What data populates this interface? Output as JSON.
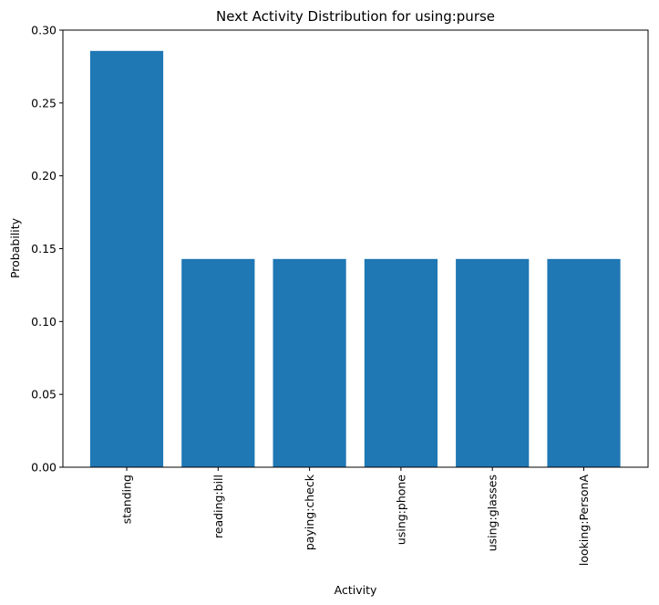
{
  "chart_data": {
    "type": "bar",
    "title": "Next Activity Distribution for using:purse",
    "xlabel": "Activity",
    "ylabel": "Probability",
    "categories": [
      "standing",
      "reading:bill",
      "paying:check",
      "using:phone",
      "using:glasses",
      "looking:PersonA"
    ],
    "values": [
      0.2857,
      0.1429,
      0.1429,
      0.1429,
      0.1429,
      0.1429
    ],
    "ylim": [
      0,
      0.3
    ],
    "yticks": [
      0.0,
      0.05,
      0.1,
      0.15,
      0.2,
      0.25,
      0.3
    ],
    "ytick_labels": [
      "0.00",
      "0.05",
      "0.10",
      "0.15",
      "0.20",
      "0.25",
      "0.30"
    ],
    "bar_color": "#1f77b4",
    "grid": false,
    "legend": false
  }
}
